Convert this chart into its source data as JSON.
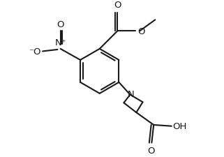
{
  "bg_color": "#ffffff",
  "line_color": "#1a1a1a",
  "line_width": 1.5,
  "font_size": 9.5,
  "figsize": [
    3.21,
    2.26
  ],
  "dpi": 100,
  "xlim": [
    0,
    8
  ],
  "ylim": [
    0,
    6
  ]
}
